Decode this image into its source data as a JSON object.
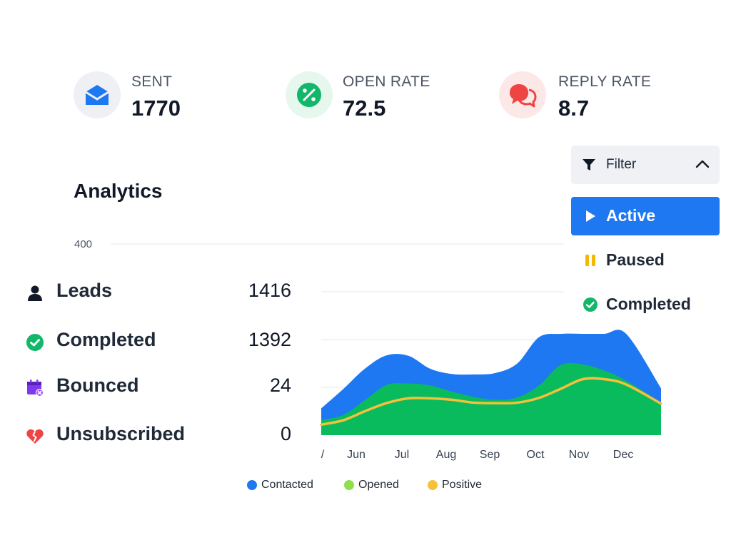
{
  "stats": [
    {
      "label": "SENT",
      "value": "1770",
      "icon": "envelope-icon",
      "icon_color": "#1d78f2",
      "icon_bg": "#eef0f4"
    },
    {
      "label": "OPEN RATE",
      "value": "72.5",
      "icon": "percent-icon",
      "icon_color": "#12b76a",
      "icon_bg": "#e6f7ee"
    },
    {
      "label": "REPLY RATE",
      "value": "8.7",
      "icon": "chat-bubbles-icon",
      "icon_color": "#ef4444",
      "icon_bg": "#fde8e8"
    }
  ],
  "analytics": {
    "title": "Analytics"
  },
  "metrics": [
    {
      "label": "Leads",
      "value": "1416",
      "icon": "person-icon"
    },
    {
      "label": "Completed",
      "value": "1392",
      "icon": "check-circle-icon"
    },
    {
      "label": "Bounced",
      "value": "24",
      "icon": "calendar-x-icon"
    },
    {
      "label": "Unsubscribed",
      "value": "0",
      "icon": "broken-heart-icon"
    }
  ],
  "filter": {
    "label": "Filter",
    "options": [
      {
        "label": "Active",
        "icon": "play-icon",
        "selected": true
      },
      {
        "label": "Paused",
        "icon": "pause-icon",
        "selected": false
      },
      {
        "label": "Completed",
        "icon": "check-circle-icon",
        "selected": false
      }
    ]
  },
  "colors": {
    "contacted": "#1d78f2",
    "opened": "#0abb5e",
    "positive": "#f5c13b",
    "legend_opened": "#8ee04a"
  },
  "chart_data": {
    "type": "area",
    "y_ticks": [
      "400"
    ],
    "ylim": [
      0,
      400
    ],
    "x_tick_labels": [
      "/",
      "Jun",
      "Jul",
      "Aug",
      "Sep",
      "Oct",
      "Nov",
      "Dec"
    ],
    "x": [
      0,
      0.5,
      1,
      1.5,
      2,
      2.5,
      3,
      3.5,
      4,
      4.5,
      5,
      5.5,
      6,
      6.5,
      7,
      7.8
    ],
    "series": [
      {
        "name": "Contacted",
        "values": [
          56,
          96,
          139,
          167,
          166,
          139,
          128,
          127,
          130,
          150,
          205,
          212,
          212,
          212,
          212,
          98
        ]
      },
      {
        "name": "Opened",
        "values": [
          32,
          42,
          73,
          105,
          108,
          104,
          91,
          80,
          74,
          79,
          104,
          147,
          148,
          135,
          114,
          68
        ]
      },
      {
        "name": "Positive",
        "values": [
          22,
          31,
          50,
          67,
          77,
          77,
          74,
          68,
          67,
          68,
          78,
          97,
          117,
          117,
          106,
          66
        ]
      }
    ],
    "legend": [
      "Contacted",
      "Opened",
      "Positive"
    ],
    "legend_position": "bottom",
    "grid": true
  }
}
